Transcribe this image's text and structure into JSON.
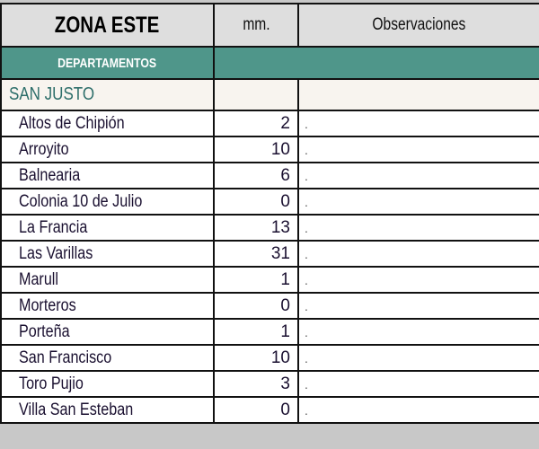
{
  "header": {
    "zone": "ZONA ESTE",
    "mm": "mm.",
    "observations": "Observaciones"
  },
  "section": "DEPARTAMENTOS",
  "group": "SAN JUSTO",
  "rows": [
    {
      "name": "Altos de Chipión",
      "mm": "2",
      "obs": "."
    },
    {
      "name": "Arroyito",
      "mm": "10",
      "obs": "."
    },
    {
      "name": "Balnearia",
      "mm": "6",
      "obs": "."
    },
    {
      "name": "Colonia 10 de Julio",
      "mm": "0",
      "obs": "."
    },
    {
      "name": "La Francia",
      "mm": "13",
      "obs": "."
    },
    {
      "name": "Las Varillas",
      "mm": "31",
      "obs": "."
    },
    {
      "name": "Marull",
      "mm": "1",
      "obs": "."
    },
    {
      "name": "Morteros",
      "mm": "0",
      "obs": "."
    },
    {
      "name": "Porteña",
      "mm": "1",
      "obs": "."
    },
    {
      "name": "San Francisco",
      "mm": "10",
      "obs": "."
    },
    {
      "name": "Toro Pujio",
      "mm": "3",
      "obs": "."
    },
    {
      "name": "Villa San Esteban",
      "mm": "0",
      "obs": "."
    }
  ],
  "colors": {
    "section_bg": "#4f968a",
    "header_bg": "#dedede",
    "group_text": "#2d6e6a"
  }
}
